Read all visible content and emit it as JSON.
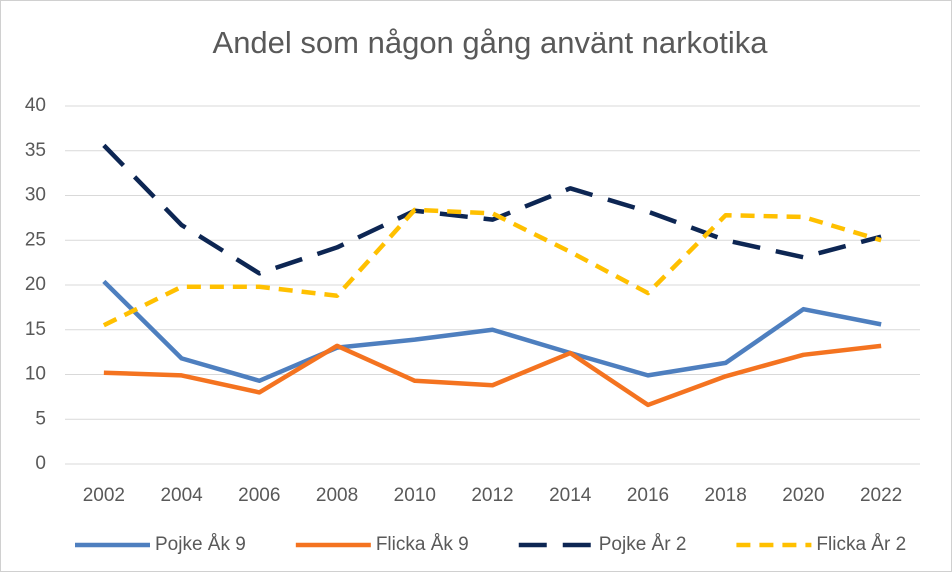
{
  "chart_data": {
    "type": "line",
    "title": "Andel som någon gång använt narkotika",
    "categories": [
      "2002",
      "2004",
      "2006",
      "2008",
      "2010",
      "2012",
      "2014",
      "2016",
      "2018",
      "2020",
      "2022"
    ],
    "series": [
      {
        "name": "Pojke Åk 9",
        "color": "#4e7fbf",
        "dash": "solid",
        "values": [
          20.4,
          11.8,
          9.3,
          13.0,
          13.9,
          15.0,
          12.4,
          9.9,
          11.3,
          17.3,
          15.6
        ]
      },
      {
        "name": "Flicka Åk 9",
        "color": "#f47320",
        "dash": "solid",
        "values": [
          10.2,
          9.9,
          8.0,
          13.2,
          9.3,
          8.8,
          12.4,
          6.6,
          9.8,
          12.2,
          13.2
        ]
      },
      {
        "name": "Pojke År 2",
        "color": "#0d2653",
        "dash": "long-dash",
        "values": [
          35.6,
          26.7,
          21.3,
          24.2,
          28.3,
          27.3,
          30.8,
          28.2,
          25.0,
          23.1,
          25.4
        ]
      },
      {
        "name": "Flicka År 2",
        "color": "#ffc000",
        "dash": "dashed",
        "values": [
          15.5,
          19.8,
          19.8,
          18.8,
          28.4,
          28.0,
          23.7,
          19.1,
          27.8,
          27.6,
          25.0
        ]
      }
    ],
    "ylim": [
      0,
      40
    ],
    "yticks": [
      0,
      5,
      10,
      15,
      20,
      25,
      30,
      35,
      40
    ],
    "grid": true,
    "legend": "bottom"
  }
}
